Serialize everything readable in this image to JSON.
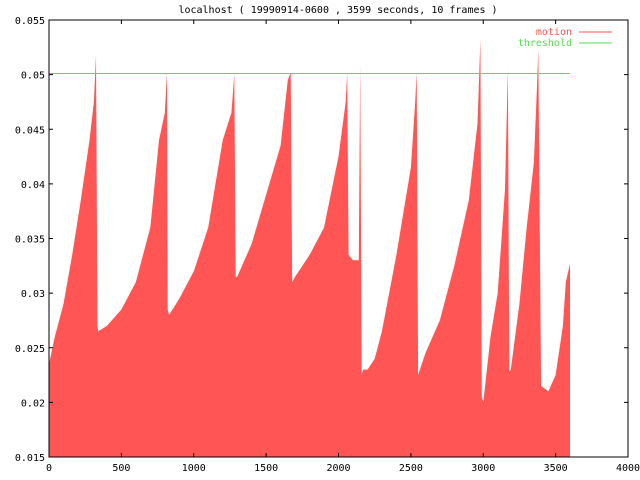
{
  "colors": {
    "motion": "#ff5555",
    "threshold": "#55dd55",
    "axis": "#000000",
    "background": "#ffffff"
  },
  "chart_data": {
    "type": "area",
    "title": "localhost ( 19990914-0600 , 3599 seconds, 10 frames )",
    "xlabel": "",
    "ylabel": "",
    "xlim": [
      0,
      4000
    ],
    "ylim": [
      0.015,
      0.055
    ],
    "x_ticks": [
      "0",
      "500",
      "1000",
      "1500",
      "2000",
      "2500",
      "3000",
      "3500",
      "4000"
    ],
    "y_ticks": [
      "0.015",
      "0.02",
      "0.025",
      "0.03",
      "0.035",
      "0.04",
      "0.045",
      "0.05",
      "0.055"
    ],
    "grid": false,
    "legend_position": "top-right",
    "series": [
      {
        "name": "motion",
        "color": "#ff5555",
        "x": [
          0,
          40,
          100,
          160,
          220,
          280,
          310,
          325,
          335,
          340,
          400,
          500,
          600,
          700,
          760,
          800,
          815,
          820,
          830,
          900,
          1000,
          1100,
          1200,
          1260,
          1280,
          1290,
          1300,
          1400,
          1500,
          1600,
          1650,
          1670,
          1680,
          1700,
          1800,
          1900,
          2000,
          2050,
          2060,
          2070,
          2100,
          2140,
          2150,
          2160,
          2170,
          2200,
          2250,
          2300,
          2400,
          2500,
          2530,
          2540,
          2550,
          2600,
          2700,
          2800,
          2900,
          2960,
          2980,
          2990,
          3000,
          3050,
          3100,
          3150,
          3170,
          3180,
          3190,
          3250,
          3300,
          3350,
          3370,
          3380,
          3400,
          3450,
          3500,
          3550,
          3570,
          3599
        ],
        "values": [
          0.0235,
          0.026,
          0.029,
          0.0335,
          0.0385,
          0.044,
          0.0475,
          0.0518,
          0.027,
          0.0265,
          0.027,
          0.0285,
          0.031,
          0.036,
          0.044,
          0.0465,
          0.0502,
          0.0285,
          0.028,
          0.0295,
          0.032,
          0.036,
          0.044,
          0.0465,
          0.05,
          0.0315,
          0.0315,
          0.0345,
          0.039,
          0.0435,
          0.0495,
          0.0502,
          0.031,
          0.0315,
          0.0335,
          0.036,
          0.0425,
          0.0475,
          0.0502,
          0.0335,
          0.033,
          0.033,
          0.051,
          0.0225,
          0.023,
          0.023,
          0.024,
          0.0265,
          0.0335,
          0.0415,
          0.0475,
          0.0502,
          0.0225,
          0.0245,
          0.0275,
          0.0325,
          0.0385,
          0.0455,
          0.0532,
          0.0205,
          0.02,
          0.026,
          0.03,
          0.0395,
          0.0505,
          0.0228,
          0.023,
          0.029,
          0.036,
          0.042,
          0.0485,
          0.0523,
          0.0215,
          0.021,
          0.0225,
          0.027,
          0.031,
          0.0327
        ]
      },
      {
        "name": "threshold",
        "color": "#55dd55",
        "x": [
          0,
          3599
        ],
        "values": [
          0.0501,
          0.0501
        ]
      }
    ]
  }
}
